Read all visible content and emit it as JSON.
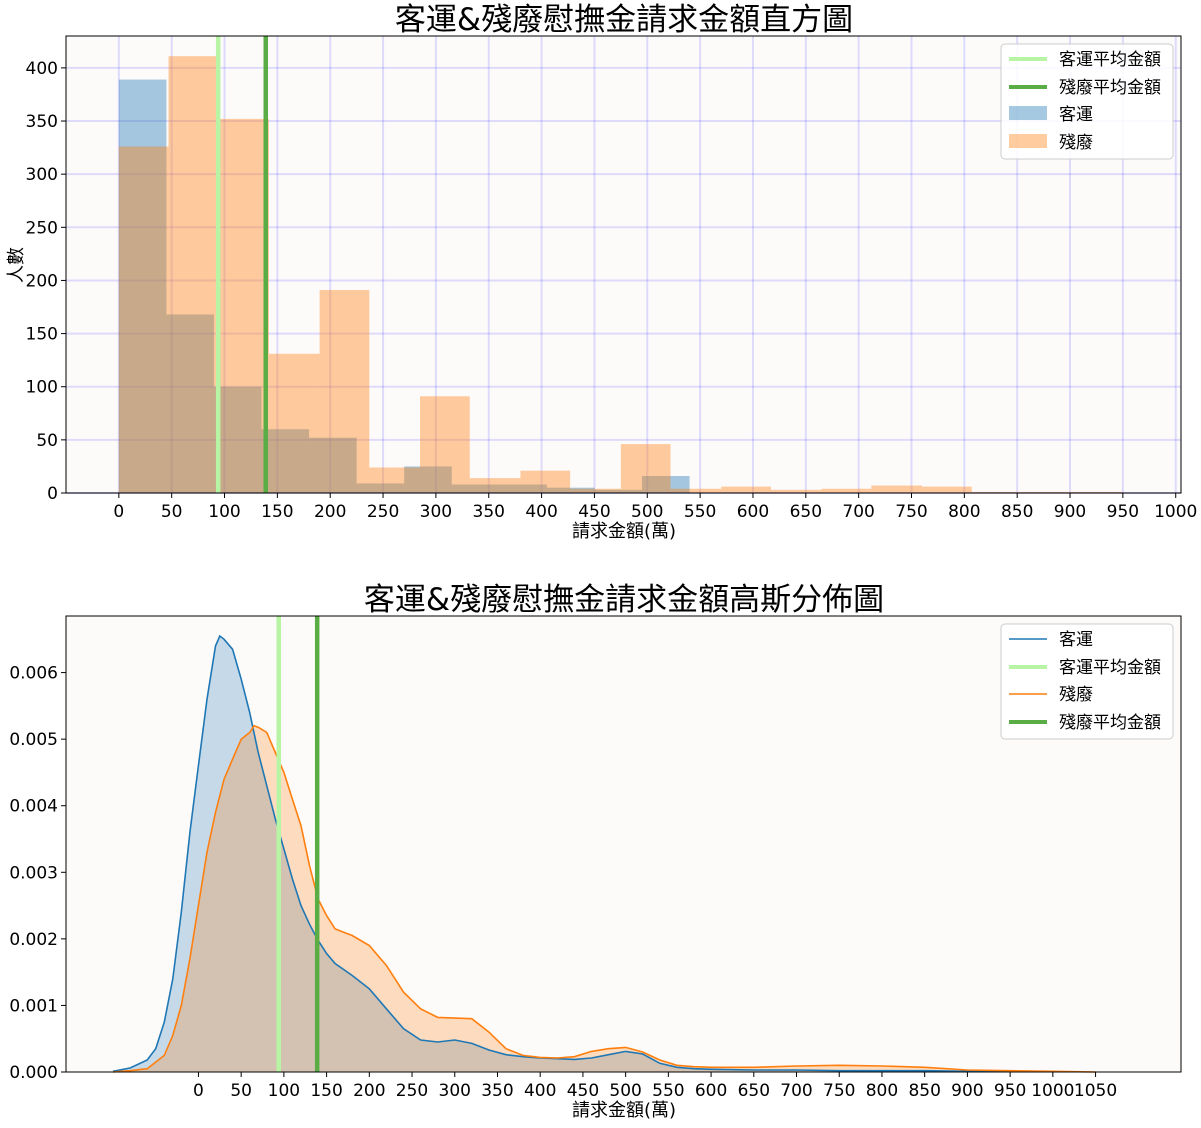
{
  "chart_data": [
    {
      "type": "bar",
      "title": "客運&殘廢慰撫金請求金額直方圖",
      "xlabel": "請求金額(萬)",
      "ylabel": "人數",
      "xlim": [
        -50,
        1005
      ],
      "ylim": [
        0,
        430
      ],
      "xticks": [
        0,
        50,
        100,
        150,
        200,
        250,
        300,
        350,
        400,
        450,
        500,
        550,
        600,
        650,
        700,
        750,
        800,
        850,
        900,
        950,
        1000
      ],
      "xtick_labels": [
        "0",
        "50",
        "100",
        "150",
        "200",
        "250",
        "300",
        "350",
        "400",
        "450",
        "500",
        "550",
        "600",
        "650",
        "700",
        "750",
        "800",
        "850",
        "900",
        "950",
        "1000"
      ],
      "yticks": [
        0,
        50,
        100,
        150,
        200,
        250,
        300,
        350,
        400
      ],
      "ytick_labels": [
        "0",
        "50",
        "100",
        "150",
        "200",
        "250",
        "300",
        "350",
        "400"
      ],
      "grid": true,
      "legend_position": "top-right",
      "legend": [
        "客運平均金額",
        "殘廢平均金額",
        "客運",
        "殘廢"
      ],
      "series": [
        {
          "name": "客運",
          "color": "#1f77b4",
          "bins": [
            {
              "x0": 0,
              "x1": 45,
              "value": 389
            },
            {
              "x0": 45,
              "x1": 90,
              "value": 168
            },
            {
              "x0": 90,
              "x1": 135,
              "value": 100
            },
            {
              "x0": 135,
              "x1": 180,
              "value": 60
            },
            {
              "x0": 180,
              "x1": 225,
              "value": 52
            },
            {
              "x0": 225,
              "x1": 270,
              "value": 9
            },
            {
              "x0": 270,
              "x1": 315,
              "value": 25
            },
            {
              "x0": 315,
              "x1": 360,
              "value": 8
            },
            {
              "x0": 360,
              "x1": 405,
              "value": 8
            },
            {
              "x0": 405,
              "x1": 450,
              "value": 5
            },
            {
              "x0": 450,
              "x1": 495,
              "value": 3
            },
            {
              "x0": 495,
              "x1": 540,
              "value": 16
            }
          ]
        },
        {
          "name": "殘廢",
          "color": "#ff7f0e",
          "bins": [
            {
              "x0": 0,
              "x1": 47,
              "value": 326
            },
            {
              "x0": 47,
              "x1": 95,
              "value": 411
            },
            {
              "x0": 95,
              "x1": 142,
              "value": 352
            },
            {
              "x0": 142,
              "x1": 190,
              "value": 131
            },
            {
              "x0": 190,
              "x1": 237,
              "value": 191
            },
            {
              "x0": 237,
              "x1": 285,
              "value": 24
            },
            {
              "x0": 285,
              "x1": 332,
              "value": 91
            },
            {
              "x0": 332,
              "x1": 380,
              "value": 14
            },
            {
              "x0": 380,
              "x1": 427,
              "value": 21
            },
            {
              "x0": 427,
              "x1": 475,
              "value": 4
            },
            {
              "x0": 475,
              "x1": 522,
              "value": 46
            },
            {
              "x0": 522,
              "x1": 570,
              "value": 4
            },
            {
              "x0": 570,
              "x1": 617,
              "value": 6
            },
            {
              "x0": 617,
              "x1": 665,
              "value": 3
            },
            {
              "x0": 665,
              "x1": 712,
              "value": 4
            },
            {
              "x0": 712,
              "x1": 760,
              "value": 7
            },
            {
              "x0": 760,
              "x1": 807,
              "value": 6
            },
            {
              "x0": 807,
              "x1": 855,
              "value": 1
            },
            {
              "x0": 855,
              "x1": 902,
              "value": 1
            },
            {
              "x0": 902,
              "x1": 950,
              "value": 1
            }
          ]
        }
      ],
      "vlines": [
        {
          "name": "客運平均金額",
          "x": 94,
          "color": "#b7f5a5"
        },
        {
          "name": "殘廢平均金額",
          "x": 139,
          "color": "#5aac44"
        }
      ]
    },
    {
      "type": "area",
      "title": "客運&殘廢慰撫金請求金額高斯分佈圖",
      "xlabel": "請求金額(萬)",
      "ylabel": "",
      "xlim": [
        -155,
        1150
      ],
      "ylim": [
        0,
        0.00685
      ],
      "xticks": [
        0,
        50,
        100,
        150,
        200,
        250,
        300,
        350,
        400,
        450,
        500,
        550,
        600,
        650,
        700,
        750,
        800,
        850,
        900,
        950,
        1000,
        1050
      ],
      "xtick_labels": [
        "0",
        "50",
        "100",
        "150",
        "200",
        "250",
        "300",
        "350",
        "400",
        "450",
        "500",
        "550",
        "600",
        "650",
        "700",
        "750",
        "800",
        "850",
        "900",
        "950",
        "1000",
        "1050"
      ],
      "yticks": [
        0,
        0.001,
        0.002,
        0.003,
        0.004,
        0.005,
        0.006
      ],
      "ytick_labels": [
        "0.000",
        "0.001",
        "0.002",
        "0.003",
        "0.004",
        "0.005",
        "0.006"
      ],
      "grid": false,
      "legend_position": "top-right",
      "legend": [
        "客運",
        "客運平均金額",
        "殘廢",
        "殘廢平均金額"
      ],
      "series": [
        {
          "name": "客運",
          "color": "#1f77b4",
          "x": [
            -100,
            -80,
            -60,
            -50,
            -40,
            -30,
            -20,
            -10,
            0,
            10,
            20,
            25,
            30,
            40,
            50,
            60,
            70,
            80,
            90,
            100,
            110,
            120,
            130,
            140,
            150,
            160,
            180,
            200,
            220,
            240,
            260,
            280,
            300,
            320,
            340,
            360,
            380,
            400,
            420,
            440,
            460,
            480,
            500,
            520,
            540,
            560,
            580,
            600,
            650,
            700,
            750,
            800,
            850,
            900,
            950
          ],
          "values": [
            1e-05,
            6e-05,
            0.00018,
            0.00035,
            0.00075,
            0.0014,
            0.0024,
            0.0036,
            0.0046,
            0.0056,
            0.0064,
            0.00655,
            0.0065,
            0.00635,
            0.0059,
            0.0054,
            0.0048,
            0.0043,
            0.0038,
            0.00335,
            0.0029,
            0.0025,
            0.00222,
            0.00198,
            0.00178,
            0.00163,
            0.00145,
            0.00125,
            0.00095,
            0.00065,
            0.00048,
            0.00045,
            0.00048,
            0.00043,
            0.00033,
            0.00026,
            0.00023,
            0.00021,
            0.0002,
            0.00019,
            0.00021,
            0.00026,
            0.00031,
            0.00027,
            0.00013,
            7e-05,
            5e-05,
            4e-05,
            3e-05,
            3e-05,
            2e-05,
            2e-05,
            2e-05,
            1e-05,
            1e-05
          ]
        },
        {
          "name": "殘廢",
          "color": "#ff7f0e",
          "x": [
            -100,
            -80,
            -60,
            -40,
            -30,
            -20,
            -10,
            0,
            10,
            20,
            30,
            40,
            50,
            60,
            65,
            70,
            80,
            90,
            100,
            110,
            120,
            130,
            140,
            150,
            160,
            170,
            180,
            200,
            220,
            240,
            260,
            280,
            300,
            320,
            340,
            360,
            380,
            400,
            420,
            440,
            460,
            480,
            500,
            520,
            540,
            560,
            580,
            600,
            650,
            700,
            750,
            800,
            850,
            900,
            950,
            1000,
            1050
          ],
          "values": [
            0.0,
            2e-05,
            5e-05,
            0.00025,
            0.00055,
            0.001,
            0.0017,
            0.0025,
            0.0033,
            0.0039,
            0.0044,
            0.0047,
            0.005,
            0.0051,
            0.0052,
            0.00518,
            0.0051,
            0.0048,
            0.0045,
            0.0041,
            0.0037,
            0.0031,
            0.0026,
            0.00235,
            0.00215,
            0.0021,
            0.00205,
            0.0019,
            0.0016,
            0.0012,
            0.00095,
            0.00082,
            0.00081,
            0.0008,
            0.0006,
            0.00035,
            0.00025,
            0.00022,
            0.00021,
            0.00023,
            0.00031,
            0.00035,
            0.00037,
            0.0003,
            0.00018,
            0.0001,
            8e-05,
            7e-05,
            7e-05,
            9e-05,
            0.0001,
            9e-05,
            7e-05,
            3e-05,
            2e-05,
            1e-05,
            0.0
          ]
        }
      ],
      "vlines": [
        {
          "name": "客運平均金額",
          "x": 94,
          "color": "#b7f5a5"
        },
        {
          "name": "殘廢平均金額",
          "x": 139,
          "color": "#5aac44"
        }
      ]
    }
  ]
}
